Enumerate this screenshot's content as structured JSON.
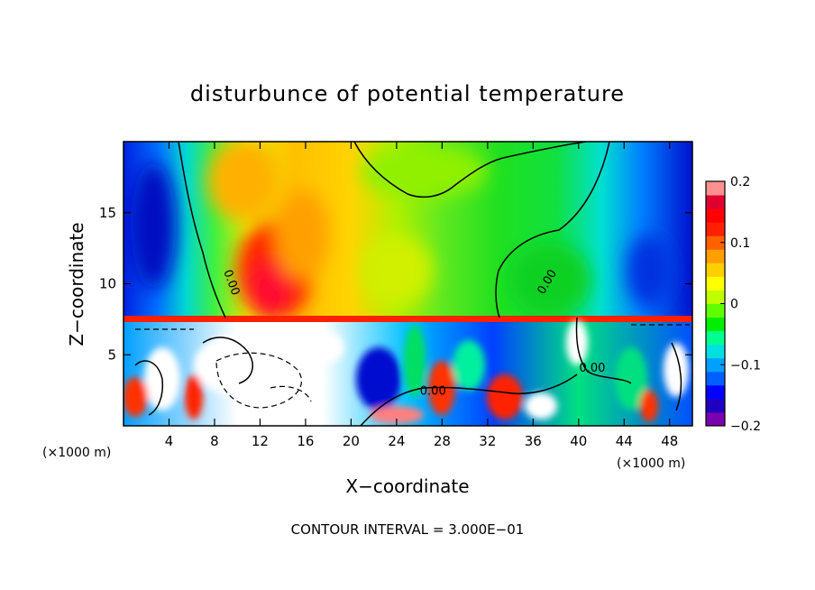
{
  "chart_data": {
    "type": "heatmap",
    "title": "disturbunce of potential temperature",
    "xlabel": "X−coordinate",
    "ylabel": "Z−coordinate",
    "x_unit_left": "(×1000 m)",
    "x_unit_right": "(×1000 m)",
    "footer": "CONTOUR INTERVAL = 3.000E−01",
    "xlim": [
      0,
      50
    ],
    "ylim": [
      0,
      20
    ],
    "x_ticks": [
      4,
      8,
      12,
      16,
      20,
      24,
      28,
      32,
      36,
      40,
      44,
      48
    ],
    "x_tick_labels": [
      "4",
      "8",
      "12",
      "16",
      "20",
      "24",
      "28",
      "32",
      "36",
      "40",
      "44",
      "48"
    ],
    "y_ticks": [
      5,
      10,
      15
    ],
    "y_tick_labels": [
      "5",
      "10",
      "15"
    ],
    "colorbar": {
      "min": -0.2,
      "max": 0.2,
      "ticks": [
        0.2,
        0.1,
        0,
        -0.1,
        -0.2
      ],
      "tick_labels": [
        "0.2",
        "0.1",
        "0",
        "−0.1",
        "−0.2"
      ],
      "colors": [
        "#7a00b0",
        "#2000c0",
        "#0000ff",
        "#0060ff",
        "#00a0ff",
        "#00e0e0",
        "#00ff90",
        "#00ee00",
        "#60ff00",
        "#c0ff00",
        "#ffff00",
        "#ffd000",
        "#ffa000",
        "#ff6000",
        "#ff2000",
        "#ff0000",
        "#e00030",
        "#ff9090"
      ]
    },
    "contour_labels": [
      {
        "text": "0.00",
        "x": 9.2,
        "z": 10.0,
        "angle": 70
      },
      {
        "text": "0.00",
        "x": 37.5,
        "z": 10.0,
        "angle": -60
      },
      {
        "text": "0.00",
        "x": 41.2,
        "z": 3.8,
        "angle": 0
      },
      {
        "text": "0.00",
        "x": 27.2,
        "z": 2.2,
        "angle": 0
      }
    ]
  }
}
